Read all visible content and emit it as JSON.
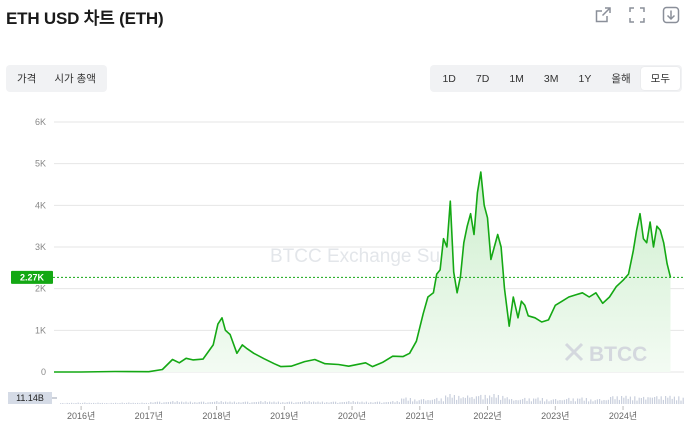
{
  "header": {
    "title": "ETH USD 차트 (ETH)",
    "icons": [
      "share-icon",
      "fullscreen-icon",
      "download-icon"
    ]
  },
  "chart_type_tabs": [
    {
      "label": "가격",
      "active": false
    },
    {
      "label": "시가 총액",
      "active": false
    }
  ],
  "range_tabs": [
    {
      "label": "1D",
      "active": false
    },
    {
      "label": "7D",
      "active": false
    },
    {
      "label": "1M",
      "active": false
    },
    {
      "label": "3M",
      "active": false
    },
    {
      "label": "1Y",
      "active": false
    },
    {
      "label": "올해",
      "active": false
    },
    {
      "label": "모두",
      "active": true
    }
  ],
  "watermark_text": "BTCC Exchange Su",
  "brand_watermark": "BTCC",
  "colors": {
    "line": "#14a814",
    "area_top": "#cdeecd",
    "area_bottom": "#f3fbf3",
    "current_label_bg": "#14a814",
    "volume_label_bg": "#d5dbe6",
    "volume_bars": "#c9cfdd",
    "grid": "#e6e6e6"
  },
  "chart_data": {
    "type": "area",
    "ylim": [
      0,
      6000
    ],
    "yticks": [
      {
        "value": 0,
        "label": "0"
      },
      {
        "value": 1000,
        "label": "1K"
      },
      {
        "value": 2000,
        "label": "2K"
      },
      {
        "value": 3000,
        "label": "3K"
      },
      {
        "value": 4000,
        "label": "4K"
      },
      {
        "value": 5000,
        "label": "5K"
      },
      {
        "value": 6000,
        "label": "6K"
      }
    ],
    "xlim": [
      2015.6,
      2024.9
    ],
    "xticks": [
      {
        "value": 2016.0,
        "label": "2016년"
      },
      {
        "value": 2017.0,
        "label": "2017년"
      },
      {
        "value": 2018.0,
        "label": "2018년"
      },
      {
        "value": 2019.0,
        "label": "2019년"
      },
      {
        "value": 2020.0,
        "label": "2020년"
      },
      {
        "value": 2021.0,
        "label": "2021년"
      },
      {
        "value": 2022.0,
        "label": "2022년"
      },
      {
        "value": 2023.0,
        "label": "2023년"
      },
      {
        "value": 2024.0,
        "label": "2024년"
      }
    ],
    "current_price": {
      "value": 2270,
      "label": "2.27K"
    },
    "volume_label": "11.14B",
    "x": [
      2015.6,
      2016.0,
      2016.5,
      2017.0,
      2017.2,
      2017.35,
      2017.45,
      2017.55,
      2017.65,
      2017.8,
      2017.95,
      2018.02,
      2018.08,
      2018.13,
      2018.2,
      2018.3,
      2018.38,
      2018.45,
      2018.55,
      2018.7,
      2018.85,
      2018.95,
      2019.1,
      2019.3,
      2019.45,
      2019.6,
      2019.8,
      2019.95,
      2020.2,
      2020.3,
      2020.45,
      2020.6,
      2020.75,
      2020.85,
      2020.95,
      2021.05,
      2021.12,
      2021.2,
      2021.25,
      2021.3,
      2021.35,
      2021.4,
      2021.45,
      2021.5,
      2021.55,
      2021.6,
      2021.65,
      2021.7,
      2021.75,
      2021.8,
      2021.85,
      2021.9,
      2021.95,
      2022.0,
      2022.05,
      2022.1,
      2022.15,
      2022.2,
      2022.25,
      2022.32,
      2022.38,
      2022.45,
      2022.5,
      2022.55,
      2022.6,
      2022.7,
      2022.8,
      2022.9,
      2023.0,
      2023.1,
      2023.2,
      2023.3,
      2023.4,
      2023.5,
      2023.6,
      2023.7,
      2023.8,
      2023.9,
      2024.0,
      2024.08,
      2024.15,
      2024.2,
      2024.25,
      2024.3,
      2024.35,
      2024.4,
      2024.45,
      2024.5,
      2024.55,
      2024.6,
      2024.65,
      2024.7
    ],
    "y": [
      1,
      1,
      12,
      8,
      60,
      300,
      220,
      330,
      290,
      310,
      650,
      1150,
      1300,
      1000,
      900,
      450,
      650,
      560,
      450,
      320,
      200,
      130,
      140,
      250,
      300,
      200,
      180,
      140,
      220,
      130,
      230,
      380,
      370,
      450,
      740,
      1400,
      1800,
      1900,
      2350,
      2450,
      3200,
      3000,
      4100,
      2400,
      1900,
      2300,
      3100,
      3500,
      3800,
      3300,
      4300,
      4800,
      4000,
      3700,
      2700,
      3000,
      3300,
      3000,
      2000,
      1100,
      1800,
      1300,
      1700,
      1600,
      1350,
      1300,
      1200,
      1250,
      1600,
      1700,
      1800,
      1850,
      1900,
      1800,
      1900,
      1650,
      1800,
      2050,
      2200,
      2350,
      2900,
      3400,
      3800,
      3200,
      3100,
      3600,
      3000,
      3500,
      3400,
      3100,
      2600,
      2270
    ]
  }
}
